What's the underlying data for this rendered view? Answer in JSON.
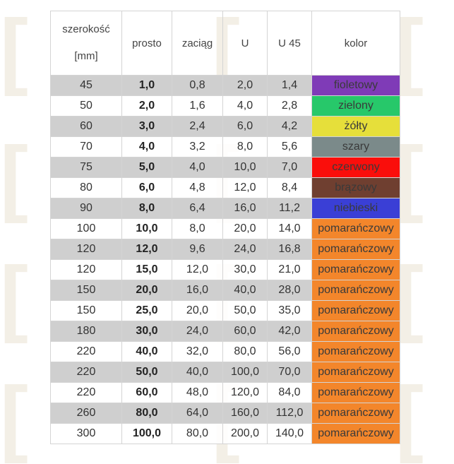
{
  "headers": {
    "szerokosc": "szerokość",
    "mm": "[mm]",
    "prosto": "prosto",
    "zaciag": "zaciąg",
    "u": "U",
    "u45": "U 45",
    "kolor": "kolor"
  },
  "colors": {
    "fioletowy": "#7f3bb7",
    "zielony": "#27c86a",
    "żółty": "#e6df3a",
    "szary": "#7b8a8a",
    "czerwony": "#fa0e0b",
    "brązowy": "#6f3f30",
    "niebieski": "#3a3fd6",
    "pomarańczowy": "#f3862b"
  },
  "rows": [
    {
      "szerokosc": "45",
      "prosto": "1,0",
      "zaciag": "0,8",
      "u": "2,0",
      "u45": "1,4",
      "kolor": "fioletowy"
    },
    {
      "szerokosc": "50",
      "prosto": "2,0",
      "zaciag": "1,6",
      "u": "4,0",
      "u45": "2,8",
      "kolor": "zielony"
    },
    {
      "szerokosc": "60",
      "prosto": "3,0",
      "zaciag": "2,4",
      "u": "6,0",
      "u45": "4,2",
      "kolor": "żółty"
    },
    {
      "szerokosc": "70",
      "prosto": "4,0",
      "zaciag": "3,2",
      "u": "8,0",
      "u45": "5,6",
      "kolor": "szary"
    },
    {
      "szerokosc": "75",
      "prosto": "5,0",
      "zaciag": "4,0",
      "u": "10,0",
      "u45": "7,0",
      "kolor": "czerwony"
    },
    {
      "szerokosc": "80",
      "prosto": "6,0",
      "zaciag": "4,8",
      "u": "12,0",
      "u45": "8,4",
      "kolor": "brązowy"
    },
    {
      "szerokosc": "90",
      "prosto": "8,0",
      "zaciag": "6,4",
      "u": "16,0",
      "u45": "11,2",
      "kolor": "niebieski"
    },
    {
      "szerokosc": "100",
      "prosto": "10,0",
      "zaciag": "8,0",
      "u": "20,0",
      "u45": "14,0",
      "kolor": "pomarańczowy"
    },
    {
      "szerokosc": "120",
      "prosto": "12,0",
      "zaciag": "9,6",
      "u": "24,0",
      "u45": "16,8",
      "kolor": "pomarańczowy"
    },
    {
      "szerokosc": "120",
      "prosto": "15,0",
      "zaciag": "12,0",
      "u": "30,0",
      "u45": "21,0",
      "kolor": "pomarańczowy"
    },
    {
      "szerokosc": "150",
      "prosto": "20,0",
      "zaciag": "16,0",
      "u": "40,0",
      "u45": "28,0",
      "kolor": "pomarańczowy"
    },
    {
      "szerokosc": "150",
      "prosto": "25,0",
      "zaciag": "20,0",
      "u": "50,0",
      "u45": "35,0",
      "kolor": "pomarańczowy"
    },
    {
      "szerokosc": "180",
      "prosto": "30,0",
      "zaciag": "24,0",
      "u": "60,0",
      "u45": "42,0",
      "kolor": "pomarańczowy"
    },
    {
      "szerokosc": "220",
      "prosto": "40,0",
      "zaciag": "32,0",
      "u": "80,0",
      "u45": "56,0",
      "kolor": "pomarańczowy"
    },
    {
      "szerokosc": "220",
      "prosto": "50,0",
      "zaciag": "40,0",
      "u": "100,0",
      "u45": "70,0",
      "kolor": "pomarańczowy"
    },
    {
      "szerokosc": "220",
      "prosto": "60,0",
      "zaciag": "48,0",
      "u": "120,0",
      "u45": "84,0",
      "kolor": "pomarańczowy"
    },
    {
      "szerokosc": "260",
      "prosto": "80,0",
      "zaciag": "64,0",
      "u": "160,0",
      "u45": "112,0",
      "kolor": "pomarańczowy"
    },
    {
      "szerokosc": "300",
      "prosto": "100,0",
      "zaciag": "80,0",
      "u": "200,0",
      "u45": "140,0",
      "kolor": "pomarańczowy"
    }
  ]
}
